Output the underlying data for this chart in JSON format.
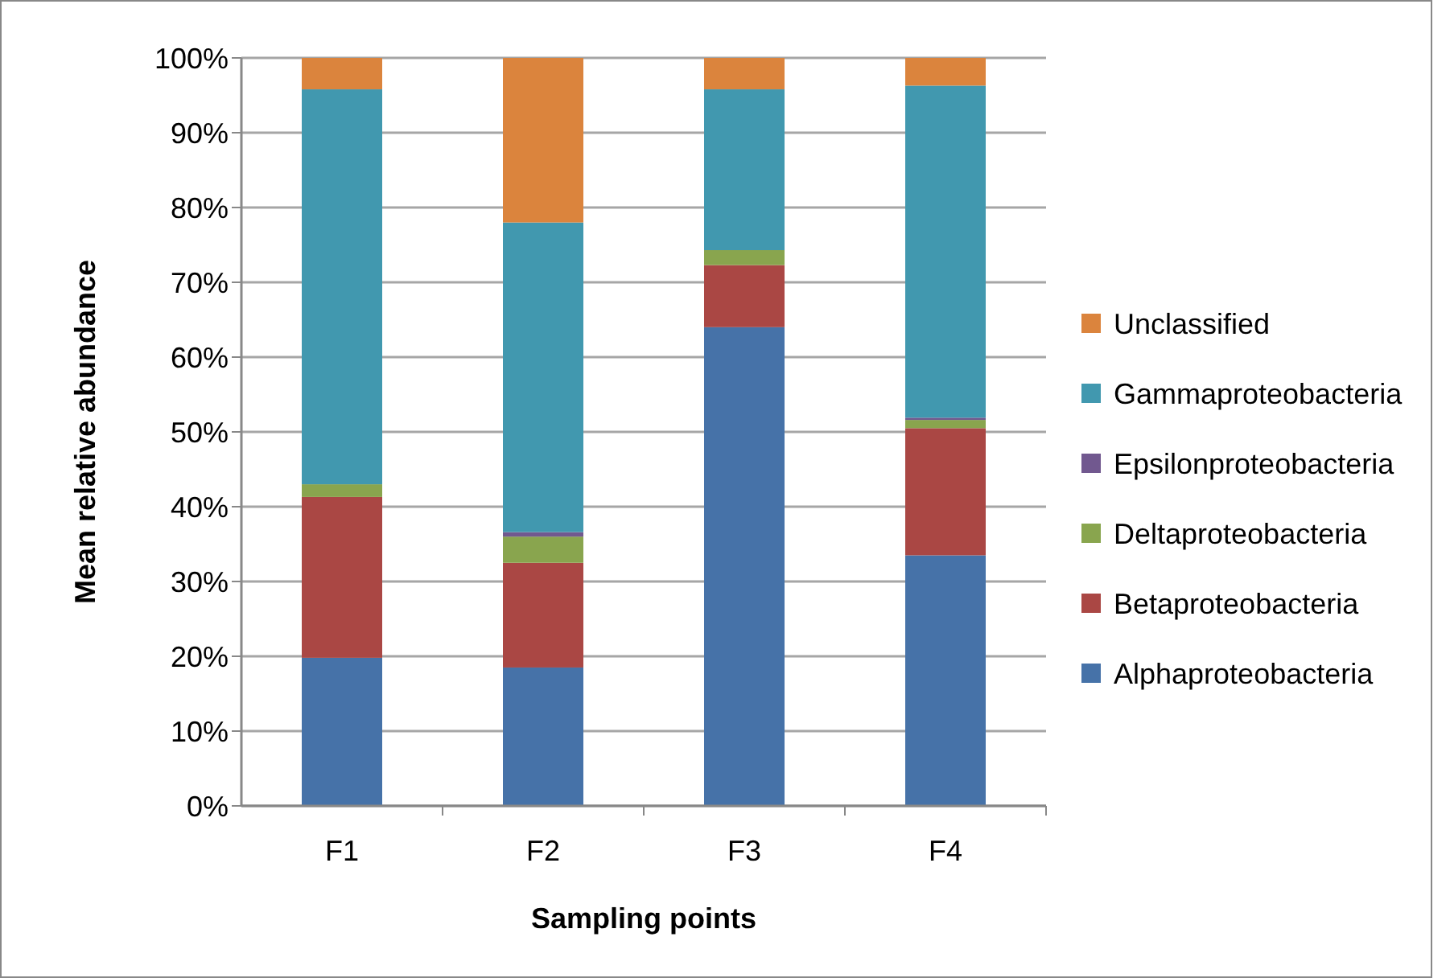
{
  "chart_data": {
    "type": "bar",
    "stacked": true,
    "xlabel": "Sampling points",
    "ylabel": "Mean relative abundance",
    "categories": [
      "F1",
      "F2",
      "F3",
      "F4"
    ],
    "series": [
      {
        "name": "Alphaproteobacteria",
        "color": "#4672a8",
        "values": [
          19.8,
          18.5,
          64.0,
          33.5
        ]
      },
      {
        "name": "Betaproteobacteria",
        "color": "#aa4744",
        "values": [
          21.5,
          14.0,
          8.3,
          17.0
        ]
      },
      {
        "name": "Deltaproteobacteria",
        "color": "#89a54e",
        "values": [
          1.7,
          3.5,
          2.0,
          1.1
        ]
      },
      {
        "name": "Epsilonproteobacteria",
        "color": "#71588f",
        "values": [
          0,
          0.6,
          0,
          0.3
        ]
      },
      {
        "name": "Gammaproteobacteria",
        "color": "#4198af",
        "values": [
          52.8,
          41.4,
          21.5,
          44.4
        ]
      },
      {
        "name": "Unclassified",
        "color": "#db843d",
        "values": [
          4.2,
          22.0,
          4.2,
          3.7
        ]
      }
    ],
    "ylim": [
      0,
      100
    ],
    "yticks": [
      {
        "value": 0,
        "label": "0%"
      },
      {
        "value": 10,
        "label": "10%"
      },
      {
        "value": 20,
        "label": "20%"
      },
      {
        "value": 30,
        "label": "30%"
      },
      {
        "value": 40,
        "label": "40%"
      },
      {
        "value": 50,
        "label": "50%"
      },
      {
        "value": 60,
        "label": "60%"
      },
      {
        "value": 70,
        "label": "70%"
      },
      {
        "value": 80,
        "label": "80%"
      },
      {
        "value": 90,
        "label": "90%"
      },
      {
        "value": 100,
        "label": "100%"
      }
    ],
    "grid": "y",
    "legend": "right"
  }
}
